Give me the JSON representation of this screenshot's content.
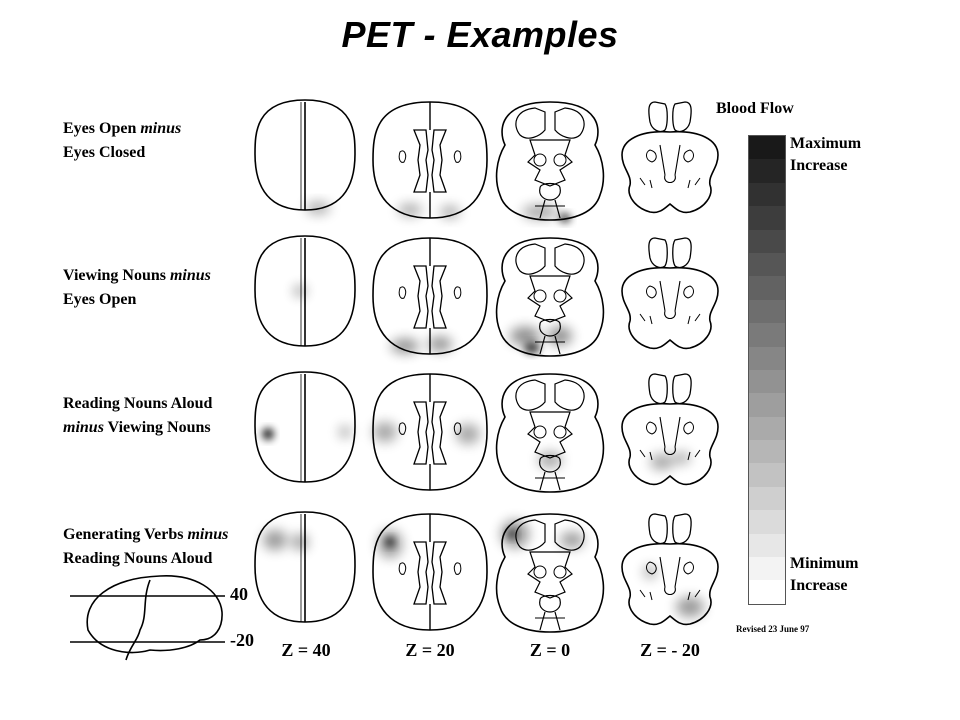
{
  "title": "PET - Examples",
  "rows": [
    {
      "line1": "Eyes Open ",
      "line1_italic": "minus",
      "line2": "Eyes Closed",
      "line2_italic": ""
    },
    {
      "line1": "Viewing Nouns ",
      "line1_italic": "minus",
      "line2": "Eyes Open",
      "line2_italic": ""
    },
    {
      "line1": "Reading Nouns Aloud",
      "line1_italic": "",
      "line2": " Viewing Nouns",
      "line2_italic": "minus"
    },
    {
      "line1": "Generating Verbs ",
      "line1_italic": "minus",
      "line2": "Reading Nouns Aloud",
      "line2_italic": ""
    }
  ],
  "z_labels": [
    "Z = 40",
    "Z = 20",
    "Z = 0",
    "Z = - 20"
  ],
  "legend": {
    "title": "Blood Flow",
    "max_line1": "Maximum",
    "max_line2": "Increase",
    "min_line1": "Minimum",
    "min_line2": "Increase"
  },
  "side_marks": {
    "upper": "40",
    "lower": "-20"
  },
  "revised": "Revised 23 June 97",
  "colors": {
    "outline": "#000000",
    "scale_dark": "#1a1a1a",
    "scale_light": "#ffffff"
  }
}
